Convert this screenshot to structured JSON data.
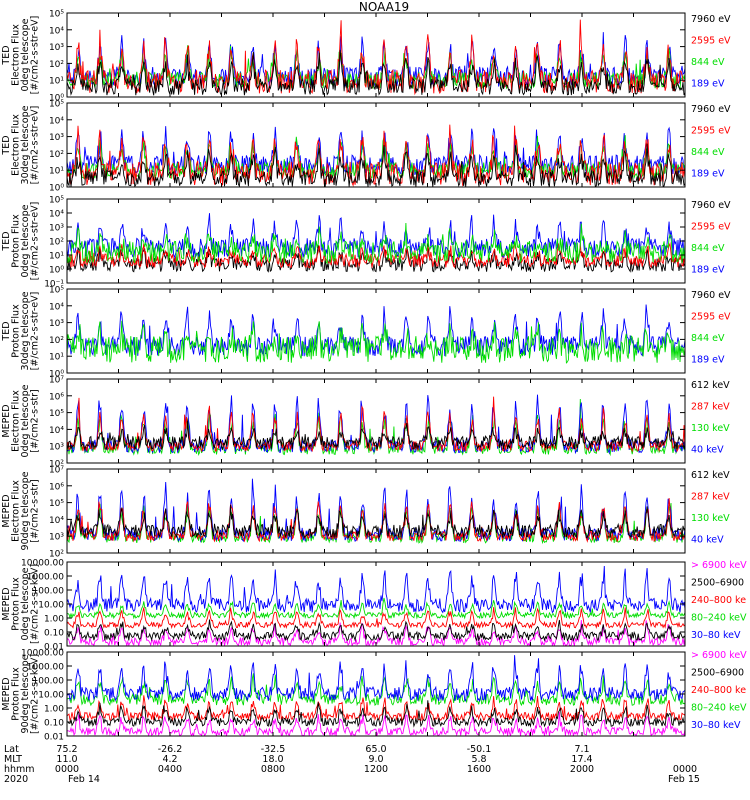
{
  "chart_data": {
    "type": "line",
    "title": "NOAA19",
    "x_range_hours": [
      0,
      24
    ],
    "panels": [
      {
        "ylabel": [
          "TED",
          "Electron Flux",
          "0deg telescope",
          "[#/cm2-s-str-eV]"
        ],
        "tick_labels": [
          "10⁰",
          "10¹",
          "10²",
          "10³",
          "10⁴",
          "10⁵"
        ],
        "ylim_log10": [
          0,
          5
        ],
        "tick_log10": [
          0,
          1,
          2,
          3,
          4,
          5
        ],
        "legend": [
          {
            "label": "7960 eV",
            "color": "#000000"
          },
          {
            "label": "2595 eV",
            "color": "#ff0000"
          },
          {
            "label": "844 eV",
            "color": "#00dd00"
          },
          {
            "label": "189 eV",
            "color": "#0000ff"
          }
        ],
        "series": [
          {
            "name": "189 eV",
            "color": "#0000ff",
            "base": 1.2,
            "amp": 2.2,
            "noise": 0.6,
            "seed": 11
          },
          {
            "name": "844 eV",
            "color": "#00dd00",
            "base": 1.0,
            "amp": 1.8,
            "noise": 0.5,
            "seed": 12
          },
          {
            "name": "2595 eV",
            "color": "#ff0000",
            "base": 0.9,
            "amp": 2.6,
            "noise": 0.7,
            "seed": 13
          },
          {
            "name": "7960 eV",
            "color": "#000000",
            "base": 0.6,
            "amp": 1.8,
            "noise": 0.5,
            "seed": 14
          }
        ]
      },
      {
        "ylabel": [
          "TED",
          "Electron Flux",
          "30deg telescope",
          "[#/cm2-s-str-eV]"
        ],
        "tick_labels": [
          "10⁰",
          "10¹",
          "10²",
          "10³",
          "10⁴",
          "10⁵"
        ],
        "ylim_log10": [
          0,
          5
        ],
        "tick_log10": [
          0,
          1,
          2,
          3,
          4,
          5
        ],
        "legend": [
          {
            "label": "7960 eV",
            "color": "#000000"
          },
          {
            "label": "2595 eV",
            "color": "#ff0000"
          },
          {
            "label": "844 eV",
            "color": "#00dd00"
          },
          {
            "label": "189 eV",
            "color": "#0000ff"
          }
        ],
        "series": [
          {
            "name": "189 eV",
            "color": "#0000ff",
            "base": 1.3,
            "amp": 2.0,
            "noise": 0.6,
            "seed": 21
          },
          {
            "name": "844 eV",
            "color": "#00dd00",
            "base": 1.0,
            "amp": 1.8,
            "noise": 0.5,
            "seed": 22
          },
          {
            "name": "2595 eV",
            "color": "#ff0000",
            "base": 0.8,
            "amp": 2.4,
            "noise": 0.7,
            "seed": 23
          },
          {
            "name": "7960 eV",
            "color": "#000000",
            "base": 0.5,
            "amp": 1.6,
            "noise": 0.5,
            "seed": 24
          }
        ]
      },
      {
        "ylabel": [
          "TED",
          "Proton Flux",
          "0deg telescope",
          "[#/cm2-s-str-eV]"
        ],
        "tick_labels": [
          "10⁻¹",
          "10⁰",
          "10¹",
          "10²",
          "10³",
          "10⁴",
          "10⁵"
        ],
        "ylim_log10": [
          -1,
          5
        ],
        "tick_log10": [
          -1,
          0,
          1,
          2,
          3,
          4,
          5
        ],
        "legend": [
          {
            "label": "7960 eV",
            "color": "#000000"
          },
          {
            "label": "2595 eV",
            "color": "#ff0000"
          },
          {
            "label": "844 eV",
            "color": "#00dd00"
          },
          {
            "label": "189 eV",
            "color": "#0000ff"
          }
        ],
        "series": [
          {
            "name": "7960 eV",
            "color": "#000000",
            "base": 0.3,
            "amp": 1.0,
            "noise": 0.5,
            "seed": 31
          },
          {
            "name": "2595 eV",
            "color": "#ff0000",
            "base": 0.6,
            "amp": 1.0,
            "noise": 0.5,
            "seed": 32
          },
          {
            "name": "189 eV",
            "color": "#0000ff",
            "base": 1.5,
            "amp": 2.0,
            "noise": 0.7,
            "seed": 33
          },
          {
            "name": "844 eV",
            "color": "#00dd00",
            "base": 1.2,
            "amp": 1.2,
            "noise": 0.8,
            "seed": 34
          }
        ]
      },
      {
        "ylabel": [
          "TED",
          "Proton Flux",
          "30deg telescope",
          "[#/cm2-s-str-eV]"
        ],
        "tick_labels": [
          "10⁰",
          "10¹",
          "10²",
          "10³",
          "10⁴",
          "10⁵"
        ],
        "ylim_log10": [
          0,
          5
        ],
        "tick_log10": [
          0,
          1,
          2,
          3,
          4,
          5
        ],
        "legend": [
          {
            "label": "7960 eV",
            "color": "#000000"
          },
          {
            "label": "2595 eV",
            "color": "#ff0000"
          },
          {
            "label": "844 eV",
            "color": "#00dd00"
          },
          {
            "label": "189 eV",
            "color": "#0000ff"
          }
        ],
        "series": [
          {
            "name": "189 eV",
            "color": "#0000ff",
            "base": 1.6,
            "amp": 2.0,
            "noise": 0.6,
            "seed": 41
          },
          {
            "name": "844 eV",
            "color": "#00dd00",
            "base": 1.4,
            "amp": 1.2,
            "noise": 0.8,
            "seed": 42
          }
        ]
      },
      {
        "ylabel": [
          "MEPED",
          "Electron Flux",
          "0deg telescope",
          "[#/cm2-s-str]"
        ],
        "tick_labels": [
          "10²",
          "10³",
          "10⁴",
          "10⁵",
          "10⁶",
          "10⁷"
        ],
        "ylim_log10": [
          2,
          7
        ],
        "tick_log10": [
          2,
          3,
          4,
          5,
          6,
          7
        ],
        "legend": [
          {
            "label": "612 keV",
            "color": "#000000"
          },
          {
            "label": "287 keV",
            "color": "#ff0000"
          },
          {
            "label": "130 keV",
            "color": "#00dd00"
          },
          {
            "label": "40 keV",
            "color": "#0000ff"
          }
        ],
        "series": [
          {
            "name": "130 keV",
            "color": "#00dd00",
            "base": 2.8,
            "amp": 2.2,
            "noise": 0.3,
            "seed": 51
          },
          {
            "name": "40 keV",
            "color": "#0000ff",
            "base": 3.0,
            "amp": 3.0,
            "noise": 0.4,
            "seed": 52
          },
          {
            "name": "287 keV",
            "color": "#ff0000",
            "base": 3.0,
            "amp": 2.2,
            "noise": 0.3,
            "seed": 53
          },
          {
            "name": "612 keV",
            "color": "#000000",
            "base": 3.2,
            "amp": 0.9,
            "noise": 0.4,
            "seed": 54
          }
        ]
      },
      {
        "ylabel": [
          "MEPED",
          "Electron Flux",
          "90deg telescope",
          "[#/cm2-s-str]"
        ],
        "tick_labels": [
          "10²",
          "10³",
          "10⁴",
          "10⁵",
          "10⁶",
          "10⁷"
        ],
        "ylim_log10": [
          2,
          7
        ],
        "tick_log10": [
          2,
          3,
          4,
          5,
          6,
          7
        ],
        "legend": [
          {
            "label": "612 keV",
            "color": "#000000"
          },
          {
            "label": "287 keV",
            "color": "#ff0000"
          },
          {
            "label": "130 keV",
            "color": "#00dd00"
          },
          {
            "label": "40 keV",
            "color": "#0000ff"
          }
        ],
        "series": [
          {
            "name": "130 keV",
            "color": "#00dd00",
            "base": 2.9,
            "amp": 2.0,
            "noise": 0.3,
            "seed": 61
          },
          {
            "name": "40 keV",
            "color": "#0000ff",
            "base": 3.1,
            "amp": 2.8,
            "noise": 0.4,
            "seed": 62
          },
          {
            "name": "287 keV",
            "color": "#ff0000",
            "base": 3.0,
            "amp": 2.2,
            "noise": 0.3,
            "seed": 63
          },
          {
            "name": "612 keV",
            "color": "#000000",
            "base": 3.3,
            "amp": 1.2,
            "noise": 0.4,
            "seed": 64
          }
        ]
      },
      {
        "ylabel": [
          "MEPED",
          "Proton Flux",
          "0deg telescope",
          "[#/cm2-s-sr-keV]"
        ],
        "tick_labels": [
          "0.01",
          "0.10",
          "1.00",
          "10.00",
          "100.00",
          "1000.00",
          "10000.00"
        ],
        "ylim_log10": [
          -2,
          4
        ],
        "tick_log10": [
          -2,
          -1,
          0,
          1,
          2,
          3,
          4
        ],
        "legend": [
          {
            "label": "> 6900 keV",
            "color": "#ff00ff"
          },
          {
            "label": "2500–6900",
            "color": "#000000"
          },
          {
            "label": "240–800 ke",
            "color": "#ff0000"
          },
          {
            "label": "80–240 keV",
            "color": "#00dd00"
          },
          {
            "label": "30–80 keV",
            "color": "#0000ff"
          }
        ],
        "series": [
          {
            "name": "> 6900 keV",
            "color": "#ff00ff",
            "base": -1.7,
            "amp": 1.2,
            "noise": 0.3,
            "seed": 71
          },
          {
            "name": "80–240 keV",
            "color": "#00dd00",
            "base": 0.2,
            "amp": 1.0,
            "noise": 0.2,
            "seed": 72
          },
          {
            "name": "30–80 keV",
            "color": "#0000ff",
            "base": 0.9,
            "amp": 2.4,
            "noise": 0.5,
            "seed": 73
          },
          {
            "name": "240–800 ke",
            "color": "#ff0000",
            "base": -0.5,
            "amp": 1.2,
            "noise": 0.2,
            "seed": 74
          },
          {
            "name": "2500–6900",
            "color": "#000000",
            "base": -1.3,
            "amp": 1.0,
            "noise": 0.3,
            "seed": 75
          }
        ]
      },
      {
        "ylabel": [
          "MEPED",
          "Proton Flux",
          "90deg telescope",
          "[#/cm2-s-sr-keV]"
        ],
        "tick_labels": [
          "0.01",
          "0.10",
          "1.00",
          "10.00",
          "100.00",
          "1000.00",
          "10000.00"
        ],
        "ylim_log10": [
          -2,
          4
        ],
        "tick_log10": [
          -2,
          -1,
          0,
          1,
          2,
          3,
          4
        ],
        "legend": [
          {
            "label": "> 6900 keV",
            "color": "#ff00ff"
          },
          {
            "label": "2500–6900",
            "color": "#000000"
          },
          {
            "label": "240–800 ke",
            "color": "#ff0000"
          },
          {
            "label": "80–240 keV",
            "color": "#00dd00"
          },
          {
            "label": "30–80 keV",
            "color": "#0000ff"
          }
        ],
        "series": [
          {
            "name": "> 6900 keV",
            "color": "#ff00ff",
            "base": -1.7,
            "amp": 1.2,
            "noise": 0.3,
            "seed": 81
          },
          {
            "name": "240–800 ke",
            "color": "#ff0000",
            "base": -0.6,
            "amp": 1.3,
            "noise": 0.3,
            "seed": 82
          },
          {
            "name": "80–240 keV",
            "color": "#00dd00",
            "base": 0.6,
            "amp": 1.6,
            "noise": 0.4,
            "seed": 83
          },
          {
            "name": "30–80 keV",
            "color": "#0000ff",
            "base": 1.0,
            "amp": 2.3,
            "noise": 0.5,
            "seed": 84
          },
          {
            "name": "2500–6900",
            "color": "#000000",
            "base": -1.0,
            "amp": 1.2,
            "noise": 0.3,
            "seed": 85
          }
        ]
      }
    ],
    "bottom_axis": {
      "row_labels": [
        "Lat",
        "MLT",
        "hhmm",
        "2020"
      ],
      "columns": [
        {
          "hour": 0,
          "values": [
            "75.2",
            "11.0",
            "0000",
            "Feb 14"
          ]
        },
        {
          "hour": 4,
          "values": [
            "-26.2",
            "4.2",
            "0400",
            ""
          ]
        },
        {
          "hour": 8,
          "values": [
            "-32.5",
            "18.0",
            "0800",
            ""
          ]
        },
        {
          "hour": 12,
          "values": [
            "65.0",
            "9.0",
            "1200",
            ""
          ]
        },
        {
          "hour": 16,
          "values": [
            "-50.1",
            "5.8",
            "1600",
            ""
          ]
        },
        {
          "hour": 20,
          "values": [
            "7.1",
            "17.4",
            "2000",
            ""
          ]
        },
        {
          "hour": 24,
          "values": [
            "",
            "",
            "0000",
            "Feb 15"
          ]
        }
      ]
    }
  }
}
